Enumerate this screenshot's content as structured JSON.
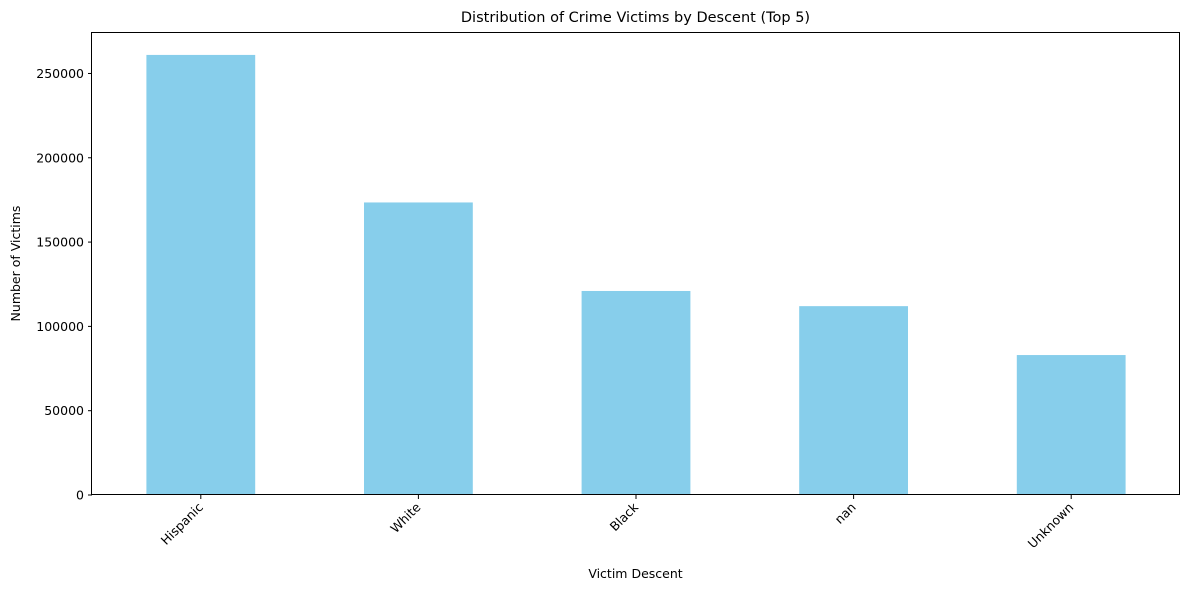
{
  "chart_data": {
    "type": "bar",
    "title": "Distribution of Crime Victims by Descent (Top 5)",
    "xlabel": "Victim Descent",
    "ylabel": "Number of Victims",
    "categories": [
      "Hispanic",
      "White",
      "Black",
      "nan",
      "Unknown"
    ],
    "values": [
      261000,
      173500,
      121000,
      112000,
      83000
    ],
    "ylim": [
      0,
      274000
    ],
    "yticks": [
      0,
      50000,
      100000,
      150000,
      200000,
      250000
    ],
    "grid": false,
    "legend": "none",
    "bar_color": "#87ceeb"
  }
}
